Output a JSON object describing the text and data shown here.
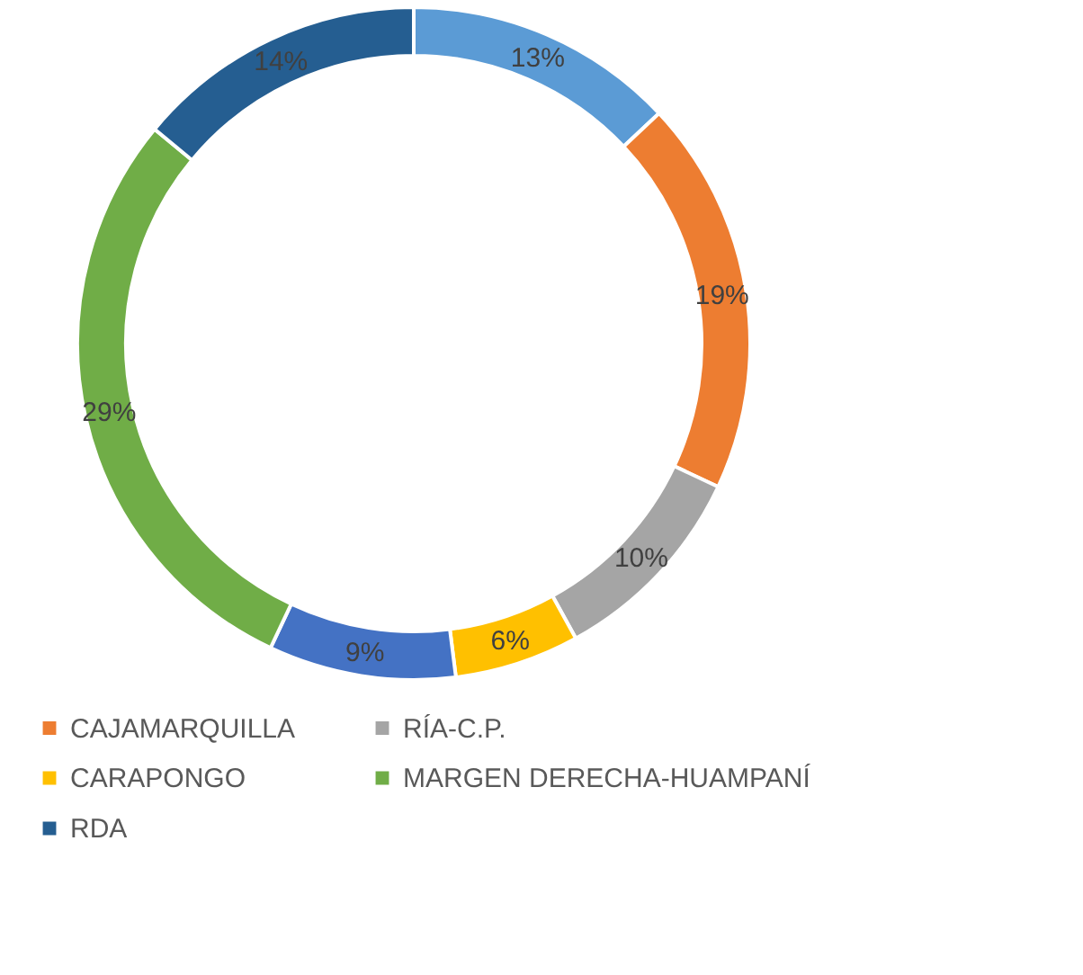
{
  "chart_data": {
    "type": "donut",
    "categories": [
      null,
      "CAJAMARQUILLA",
      "RÍA-C.P.",
      "CARAPONGO",
      null,
      "MARGEN DERECHA-HUAMPANÍ",
      "RDA"
    ],
    "values": [
      13,
      19,
      10,
      6,
      9,
      29,
      14
    ],
    "colors": [
      "#5b9bd5",
      "#ed7d31",
      "#a5a5a5",
      "#ffc000",
      "#4472c4",
      "#70ad47",
      "#255e91"
    ],
    "value_labels": [
      "13%",
      "19%",
      "10%",
      "6%",
      "9%",
      "29%",
      "14%"
    ],
    "legend": "bottom"
  }
}
